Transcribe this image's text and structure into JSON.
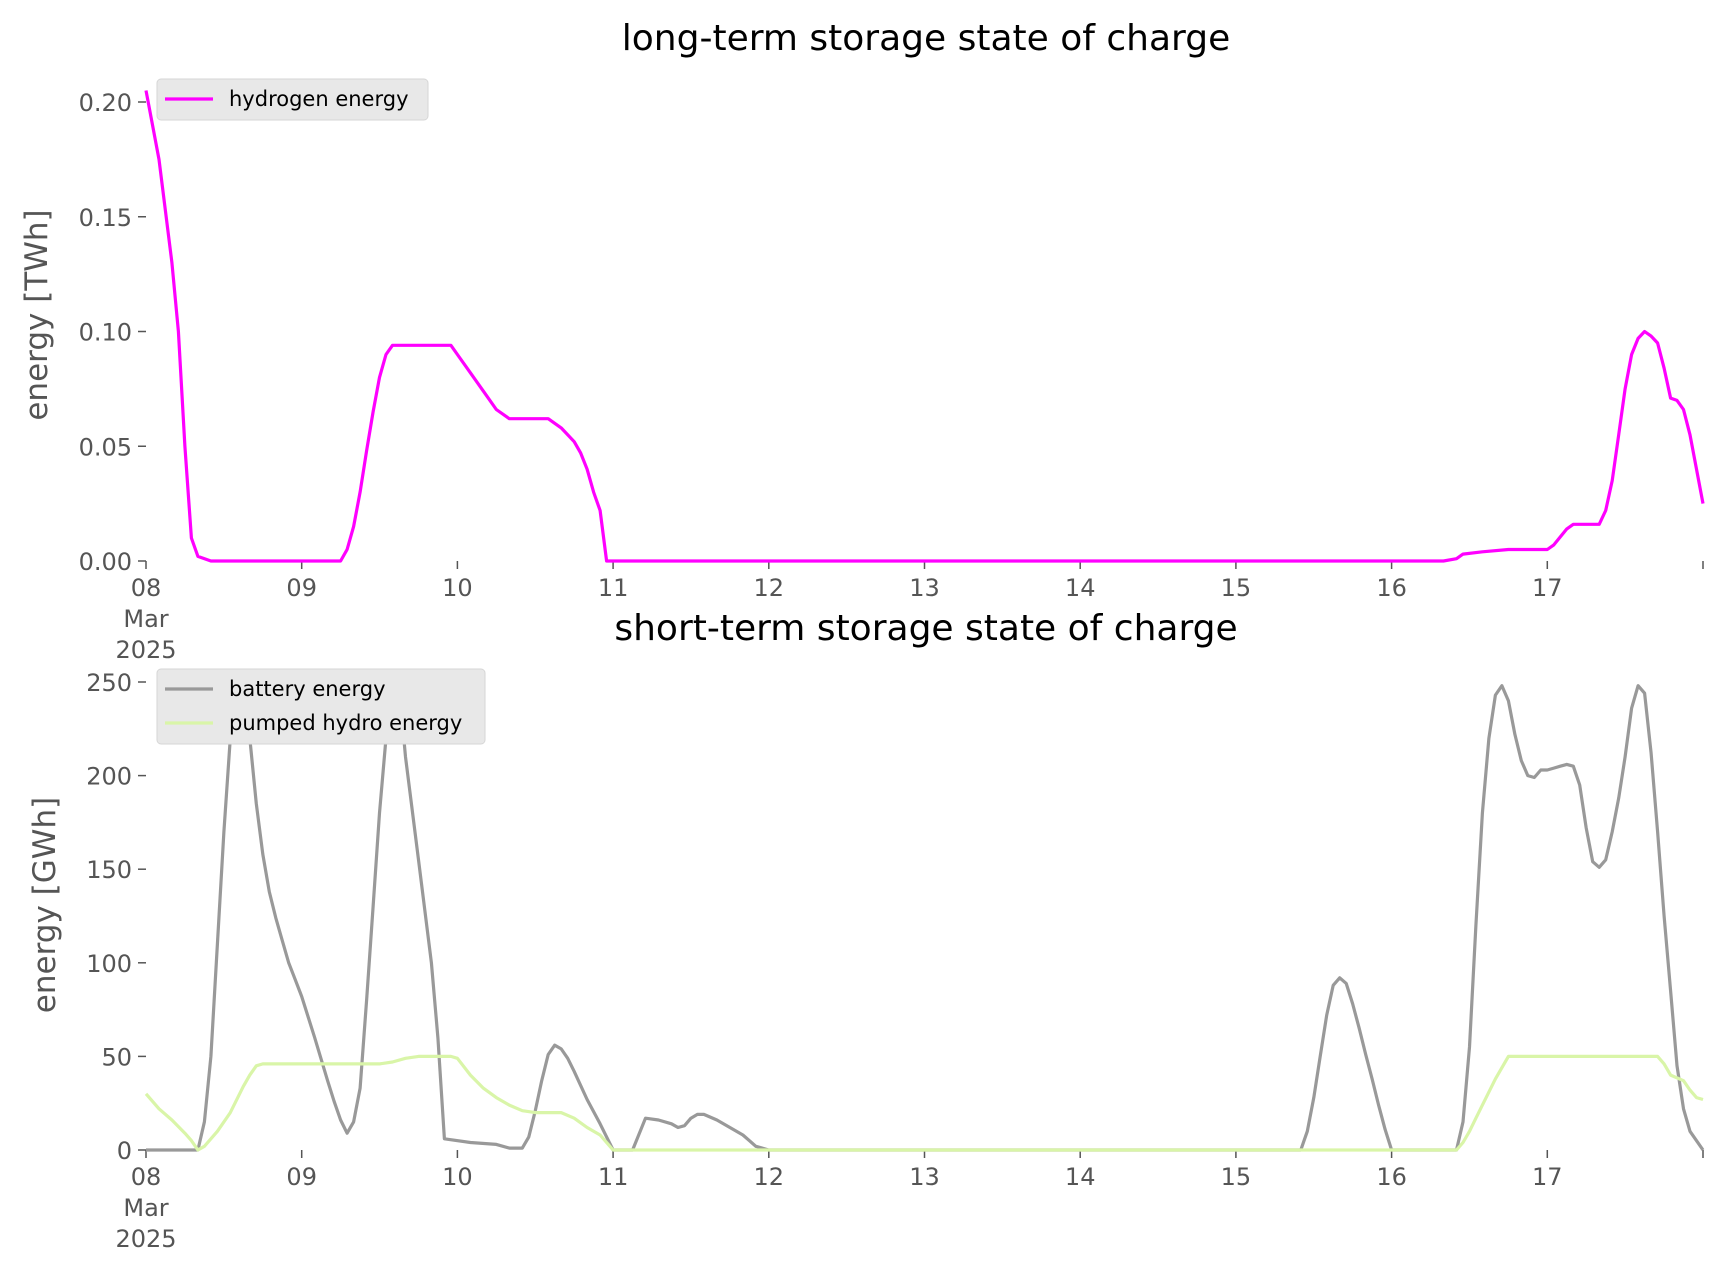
{
  "chart_data": [
    {
      "type": "line",
      "title": "long-term storage state of charge",
      "xlabel": "",
      "ylabel": "energy [TWh]",
      "xlim": [
        0,
        240
      ],
      "ylim": [
        0,
        0.2
      ],
      "x_unit": "hours since 08 Mar 2025 00:00",
      "x_ticks": [
        0,
        24,
        48,
        72,
        96,
        120,
        144,
        168,
        192,
        216,
        240
      ],
      "x_tick_labels": [
        "08\nMar\n2025",
        "09",
        "10",
        "11",
        "12",
        "13",
        "14",
        "15",
        "16",
        "17",
        ""
      ],
      "y_ticks": [
        0.0,
        0.05,
        0.1,
        0.15,
        0.2
      ],
      "y_tick_labels": [
        "0.00",
        "0.05",
        "0.10",
        "0.15",
        "0.20"
      ],
      "grid": false,
      "legend_position": "top-left",
      "series": [
        {
          "name": "hydrogen energy",
          "color": "#ff00ff",
          "points": [
            [
              0,
              0.205
            ],
            [
              2,
              0.175
            ],
            [
              4,
              0.13
            ],
            [
              5,
              0.1
            ],
            [
              6,
              0.05
            ],
            [
              7,
              0.01
            ],
            [
              8,
              0.002
            ],
            [
              10,
              0.0
            ],
            [
              24,
              0.0
            ],
            [
              30,
              0.0
            ],
            [
              31,
              0.005
            ],
            [
              32,
              0.015
            ],
            [
              33,
              0.03
            ],
            [
              34,
              0.048
            ],
            [
              35,
              0.065
            ],
            [
              36,
              0.08
            ],
            [
              37,
              0.09
            ],
            [
              38,
              0.094
            ],
            [
              40,
              0.094
            ],
            [
              47,
              0.094
            ],
            [
              48,
              0.09
            ],
            [
              50,
              0.082
            ],
            [
              52,
              0.074
            ],
            [
              54,
              0.066
            ],
            [
              56,
              0.062
            ],
            [
              62,
              0.062
            ],
            [
              64,
              0.058
            ],
            [
              66,
              0.052
            ],
            [
              67,
              0.047
            ],
            [
              68,
              0.04
            ],
            [
              69,
              0.03
            ],
            [
              70,
              0.022
            ],
            [
              71,
              0.0
            ],
            [
              72,
              0.0
            ],
            [
              120,
              0.0
            ],
            [
              200,
              0.0
            ],
            [
              202,
              0.001
            ],
            [
              203,
              0.003
            ],
            [
              206,
              0.004
            ],
            [
              210,
              0.005
            ],
            [
              216,
              0.005
            ],
            [
              217,
              0.007
            ],
            [
              219,
              0.014
            ],
            [
              220,
              0.016
            ],
            [
              224,
              0.016
            ],
            [
              225,
              0.022
            ],
            [
              226,
              0.035
            ],
            [
              227,
              0.055
            ],
            [
              228,
              0.075
            ],
            [
              229,
              0.09
            ],
            [
              230,
              0.097
            ],
            [
              231,
              0.1
            ],
            [
              232,
              0.098
            ],
            [
              233,
              0.095
            ],
            [
              234,
              0.084
            ],
            [
              235,
              0.071
            ],
            [
              236,
              0.07
            ],
            [
              237,
              0.066
            ],
            [
              238,
              0.055
            ],
            [
              239,
              0.04
            ],
            [
              240,
              0.025
            ]
          ]
        }
      ]
    },
    {
      "type": "line",
      "title": "short-term storage state of charge",
      "xlabel": "",
      "ylabel": "energy [GWh]",
      "xlim": [
        0,
        240
      ],
      "ylim": [
        0,
        250
      ],
      "x_unit": "hours since 08 Mar 2025 00:00",
      "x_ticks": [
        0,
        24,
        48,
        72,
        96,
        120,
        144,
        168,
        192,
        216,
        240
      ],
      "x_tick_labels": [
        "08\nMar\n2025",
        "09",
        "10",
        "11",
        "12",
        "13",
        "14",
        "15",
        "16",
        "17",
        ""
      ],
      "y_ticks": [
        0,
        50,
        100,
        150,
        200,
        250
      ],
      "y_tick_labels": [
        "0",
        "50",
        "100",
        "150",
        "200",
        "250"
      ],
      "grid": false,
      "legend_position": "top-left",
      "series": [
        {
          "name": "battery energy",
          "color": "#999999",
          "points": [
            [
              0,
              0
            ],
            [
              7,
              0
            ],
            [
              8,
              0
            ],
            [
              9,
              15
            ],
            [
              10,
              50
            ],
            [
              11,
              110
            ],
            [
              12,
              170
            ],
            [
              13,
              220
            ],
            [
              14,
              247
            ],
            [
              15,
              245
            ],
            [
              16,
              220
            ],
            [
              17,
              185
            ],
            [
              18,
              158
            ],
            [
              19,
              138
            ],
            [
              20,
              124
            ],
            [
              21,
              112
            ],
            [
              22,
              100
            ],
            [
              23,
              91
            ],
            [
              24,
              82
            ],
            [
              26,
              60
            ],
            [
              28,
              37
            ],
            [
              29,
              26
            ],
            [
              30,
              16
            ],
            [
              31,
              9
            ],
            [
              32,
              15
            ],
            [
              33,
              33
            ],
            [
              34,
              80
            ],
            [
              35,
              130
            ],
            [
              36,
              180
            ],
            [
              37,
              220
            ],
            [
              38,
              245
            ],
            [
              39,
              248
            ],
            [
              40,
              210
            ],
            [
              42,
              155
            ],
            [
              44,
              100
            ],
            [
              45,
              60
            ],
            [
              46,
              6
            ],
            [
              50,
              4
            ],
            [
              54,
              3
            ],
            [
              56,
              1
            ],
            [
              58,
              1
            ],
            [
              59,
              7
            ],
            [
              60,
              21
            ],
            [
              61,
              37
            ],
            [
              62,
              51
            ],
            [
              63,
              56
            ],
            [
              64,
              54
            ],
            [
              65,
              49
            ],
            [
              66,
              42
            ],
            [
              68,
              27
            ],
            [
              70,
              14
            ],
            [
              71,
              7
            ],
            [
              72,
              0
            ],
            [
              74,
              0
            ],
            [
              75,
              0
            ],
            [
              77,
              17
            ],
            [
              79,
              16
            ],
            [
              81,
              14
            ],
            [
              82,
              12
            ],
            [
              83,
              13
            ],
            [
              84,
              17
            ],
            [
              85,
              19
            ],
            [
              86,
              19
            ],
            [
              88,
              16
            ],
            [
              90,
              12
            ],
            [
              92,
              8
            ],
            [
              93,
              5
            ],
            [
              94,
              2
            ],
            [
              96,
              0
            ],
            [
              120,
              0
            ],
            [
              178,
              0
            ],
            [
              179,
              10
            ],
            [
              180,
              28
            ],
            [
              181,
              50
            ],
            [
              182,
              72
            ],
            [
              183,
              88
            ],
            [
              184,
              92
            ],
            [
              185,
              89
            ],
            [
              186,
              78
            ],
            [
              187,
              65
            ],
            [
              188,
              51
            ],
            [
              189,
              38
            ],
            [
              190,
              24
            ],
            [
              191,
              11
            ],
            [
              192,
              0
            ],
            [
              202,
              0
            ],
            [
              203,
              15
            ],
            [
              204,
              55
            ],
            [
              205,
              120
            ],
            [
              206,
              180
            ],
            [
              207,
              220
            ],
            [
              208,
              243
            ],
            [
              209,
              248
            ],
            [
              210,
              240
            ],
            [
              211,
              222
            ],
            [
              212,
              208
            ],
            [
              213,
              200
            ],
            [
              214,
              199
            ],
            [
              215,
              203
            ],
            [
              216,
              203
            ],
            [
              217,
              204
            ],
            [
              218,
              205
            ],
            [
              219,
              206
            ],
            [
              220,
              205
            ],
            [
              221,
              195
            ],
            [
              222,
              172
            ],
            [
              223,
              154
            ],
            [
              224,
              151
            ],
            [
              225,
              155
            ],
            [
              226,
              170
            ],
            [
              227,
              188
            ],
            [
              228,
              210
            ],
            [
              229,
              236
            ],
            [
              230,
              248
            ],
            [
              231,
              244
            ],
            [
              232,
              212
            ],
            [
              233,
              170
            ],
            [
              234,
              125
            ],
            [
              235,
              85
            ],
            [
              236,
              45
            ],
            [
              237,
              22
            ],
            [
              238,
              10
            ],
            [
              240,
              0
            ]
          ]
        },
        {
          "name": "pumped hydro energy",
          "color": "#d9f5a8",
          "points": [
            [
              0,
              30
            ],
            [
              2,
              22
            ],
            [
              4,
              16
            ],
            [
              6,
              9
            ],
            [
              7,
              5
            ],
            [
              8,
              0
            ],
            [
              9,
              2
            ],
            [
              11,
              10
            ],
            [
              13,
              20
            ],
            [
              15,
              34
            ],
            [
              16,
              40
            ],
            [
              17,
              45
            ],
            [
              18,
              46
            ],
            [
              30,
              46
            ],
            [
              36,
              46
            ],
            [
              38,
              47
            ],
            [
              40,
              49
            ],
            [
              42,
              50
            ],
            [
              47,
              50
            ],
            [
              48,
              49
            ],
            [
              50,
              40
            ],
            [
              52,
              33
            ],
            [
              54,
              28
            ],
            [
              56,
              24
            ],
            [
              58,
              21
            ],
            [
              60,
              20
            ],
            [
              64,
              20
            ],
            [
              66,
              17
            ],
            [
              68,
              12
            ],
            [
              70,
              8
            ],
            [
              72,
              0
            ],
            [
              120,
              0
            ],
            [
              202,
              0
            ],
            [
              203,
              4
            ],
            [
              204,
              10
            ],
            [
              205,
              17
            ],
            [
              206,
              24
            ],
            [
              208,
              38
            ],
            [
              210,
              50
            ],
            [
              216,
              50
            ],
            [
              233,
              50
            ],
            [
              234,
              46
            ],
            [
              235,
              40
            ],
            [
              237,
              37
            ],
            [
              238,
              32
            ],
            [
              239,
              28
            ],
            [
              240,
              27
            ]
          ]
        }
      ]
    }
  ]
}
